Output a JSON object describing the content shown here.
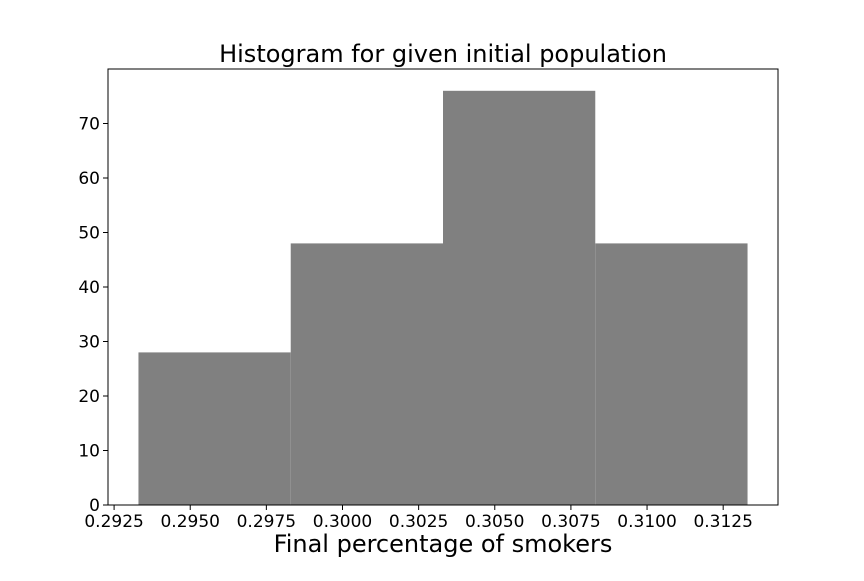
{
  "chart_data": {
    "type": "bar",
    "title": "Histogram for given initial population",
    "xlabel": "Final percentage of smokers",
    "ylabel": "",
    "bars": [
      {
        "x0": 0.2933,
        "x1": 0.2983,
        "value": 28
      },
      {
        "x0": 0.2983,
        "x1": 0.3033,
        "value": 48
      },
      {
        "x0": 0.3033,
        "x1": 0.3083,
        "value": 76
      },
      {
        "x0": 0.3083,
        "x1": 0.3133,
        "value": 48
      }
    ],
    "xlim": [
      0.2923,
      0.3143
    ],
    "ylim": [
      0,
      80
    ],
    "x_ticks": [
      {
        "value": 0.2925,
        "label": "0.2925"
      },
      {
        "value": 0.295,
        "label": "0.2950"
      },
      {
        "value": 0.2975,
        "label": "0.2975"
      },
      {
        "value": 0.3,
        "label": "0.3000"
      },
      {
        "value": 0.3025,
        "label": "0.3025"
      },
      {
        "value": 0.305,
        "label": "0.3050"
      },
      {
        "value": 0.3075,
        "label": "0.3075"
      },
      {
        "value": 0.31,
        "label": "0.3100"
      },
      {
        "value": 0.3125,
        "label": "0.3125"
      }
    ],
    "y_ticks": [
      {
        "value": 0,
        "label": "0"
      },
      {
        "value": 10,
        "label": "10"
      },
      {
        "value": 20,
        "label": "20"
      },
      {
        "value": 30,
        "label": "30"
      },
      {
        "value": 40,
        "label": "40"
      },
      {
        "value": 50,
        "label": "50"
      },
      {
        "value": 60,
        "label": "60"
      },
      {
        "value": 70,
        "label": "70"
      }
    ],
    "bar_color": "#808080",
    "grid": false,
    "legend": "none"
  }
}
